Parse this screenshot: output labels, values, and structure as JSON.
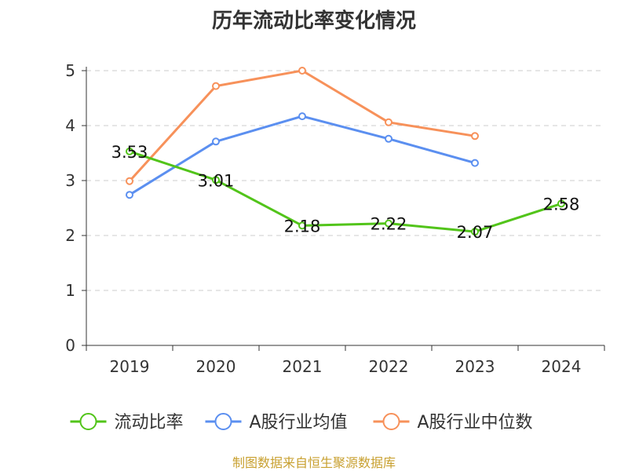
{
  "chart_data": {
    "type": "line",
    "title": "历年流动比率变化情况",
    "categories": [
      "2019",
      "2020",
      "2021",
      "2022",
      "2023",
      "2024"
    ],
    "ylim": [
      0,
      5
    ],
    "yticks": [
      0,
      1,
      2,
      3,
      4,
      5
    ],
    "grid": true,
    "legend_position": "bottom",
    "series": [
      {
        "name": "流动比率",
        "color": "#52c41a",
        "values": [
          3.53,
          3.01,
          2.18,
          2.22,
          2.07,
          2.58
        ],
        "labels": [
          "3.53",
          "3.01",
          "2.18",
          "2.22",
          "2.07",
          "2.58"
        ]
      },
      {
        "name": "A股行业均值",
        "color": "#5b8ff0",
        "values": [
          2.74,
          3.71,
          4.17,
          3.76,
          3.32,
          null
        ]
      },
      {
        "name": "A股行业中位数",
        "color": "#f7915a",
        "values": [
          2.99,
          4.72,
          5.0,
          4.06,
          3.81,
          null
        ]
      }
    ]
  },
  "footer": {
    "text": "制图数据来自恒生聚源数据库"
  }
}
